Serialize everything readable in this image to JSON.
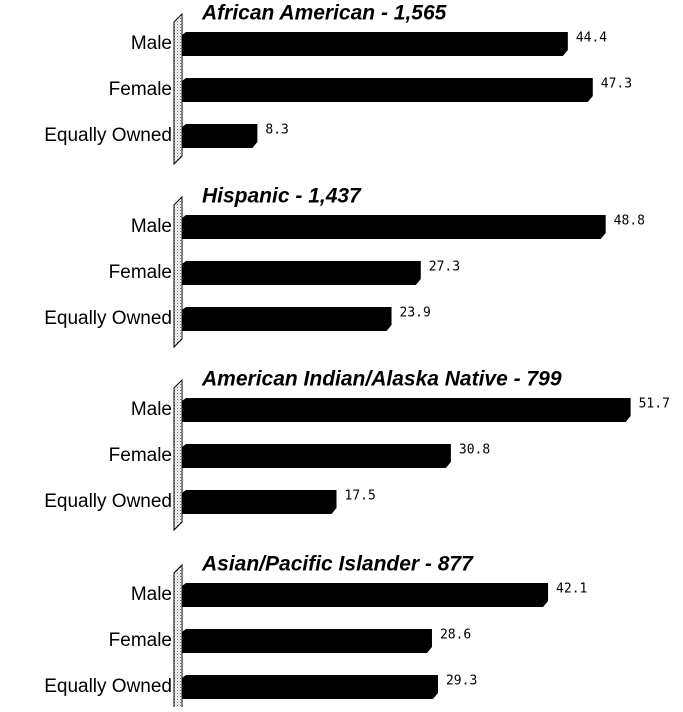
{
  "chart_data": [
    {
      "type": "bar",
      "title": "African American - 1,565",
      "categories": [
        "Male",
        "Female",
        "Equally Owned"
      ],
      "values": [
        44.4,
        47.3,
        8.3
      ],
      "color": "#000000"
    },
    {
      "type": "bar",
      "title": "Hispanic - 1,437",
      "categories": [
        "Male",
        "Female",
        "Equally Owned"
      ],
      "values": [
        48.8,
        27.3,
        23.9
      ],
      "color": "#000000"
    },
    {
      "type": "bar",
      "title": "American Indian/Alaska Native - 799",
      "categories": [
        "Male",
        "Female",
        "Equally Owned"
      ],
      "values": [
        51.7,
        30.8,
        17.5
      ],
      "color": "#000000"
    },
    {
      "type": "bar",
      "title": "Asian/Pacific Islander - 877",
      "categories": [
        "Male",
        "Female",
        "Equally Owned"
      ],
      "values": [
        42.1,
        28.6,
        29.3
      ],
      "color": "#000000"
    }
  ]
}
